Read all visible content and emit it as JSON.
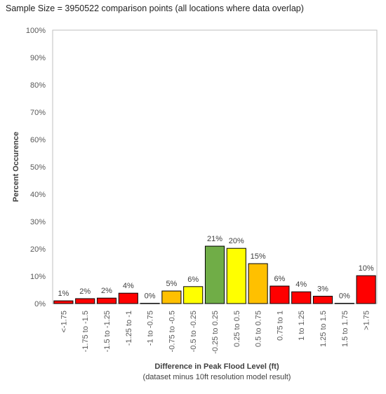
{
  "subtitle": "Sample Size = 3950522 comparison points (all locations where data overlap)",
  "chart_data": {
    "type": "bar",
    "title": "",
    "xlabel": "Difference in Peak Flood Level (ft)",
    "xlabel_note": "(dataset minus 10ft resolution model result)",
    "ylabel": "Percent Occurence",
    "ylim": [
      0,
      100
    ],
    "y_ticks": [
      0,
      10,
      20,
      30,
      40,
      50,
      60,
      70,
      80,
      90,
      100
    ],
    "y_tick_suffix": "%",
    "grid": false,
    "legend": "none",
    "categories": [
      "<-1.75",
      "-1.75 to -1.5",
      "-1.5 to -1.25",
      "-1.25 to -1",
      "-1 to -0.75",
      "-0.75 to -0.5",
      "-0.5 to -0.25",
      "-0.25 to 0.25",
      "0.25 to 0.5",
      "0.5 to 0.75",
      "0.75 to 1",
      "1 to 1.25",
      "1.25 to 1.5",
      "1.5 to 1.75",
      ">1.75"
    ],
    "values": [
      1.0,
      1.8,
      2.0,
      3.8,
      0.1,
      4.6,
      6.2,
      21.0,
      20.2,
      14.6,
      6.4,
      4.3,
      2.7,
      0.1,
      10.2
    ],
    "data_labels": [
      "1%",
      "2%",
      "2%",
      "4%",
      "0%",
      "5%",
      "6%",
      "21%",
      "20%",
      "15%",
      "6%",
      "4%",
      "3%",
      "0%",
      "10%"
    ],
    "bar_colors": [
      "#ff0000",
      "#ff0000",
      "#ff0000",
      "#ff0000",
      "#ff0000",
      "#ffc000",
      "#ffff00",
      "#70ad47",
      "#ffff00",
      "#ffc000",
      "#ff0000",
      "#ff0000",
      "#ff0000",
      "#ff0000",
      "#ff0000"
    ]
  }
}
